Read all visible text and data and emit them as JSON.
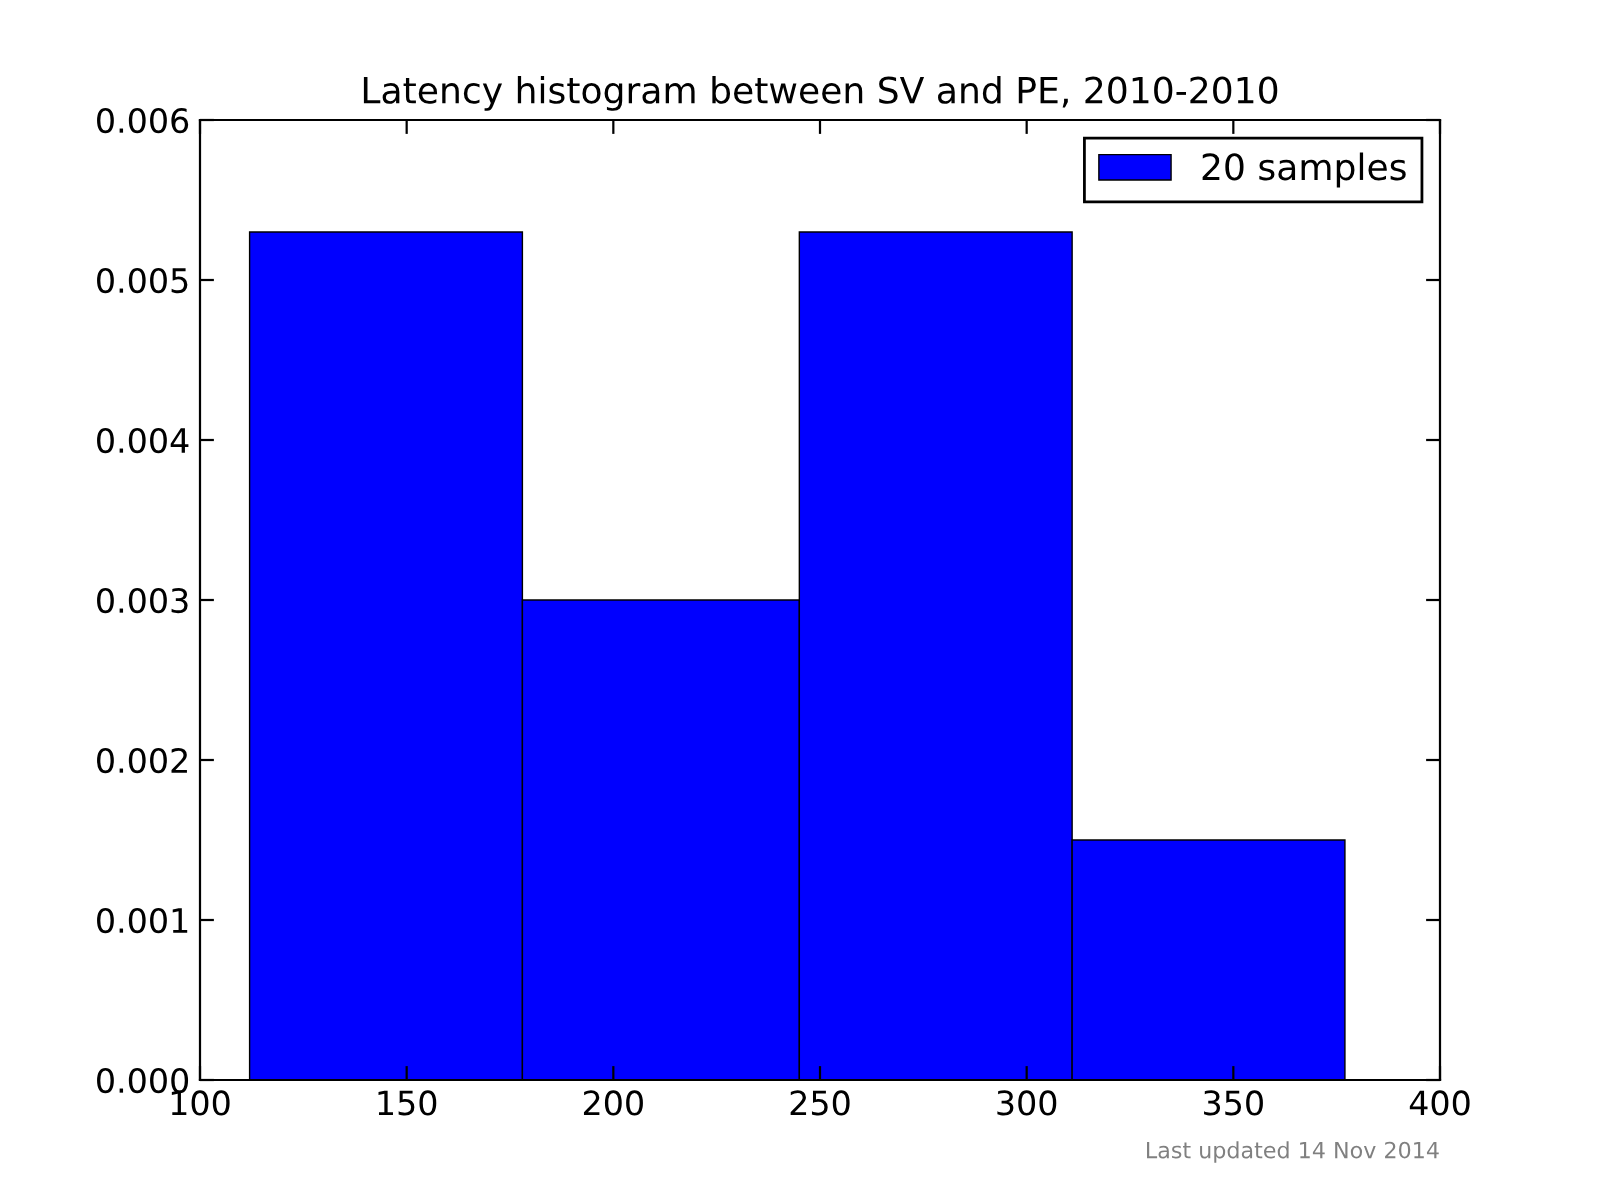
{
  "chart_data": {
    "type": "histogram",
    "title": "Latency histogram between SV and PE, 2010-2010",
    "bins": [
      112,
      178,
      245,
      311,
      377
    ],
    "series": [
      {
        "name": "20 samples",
        "color": "#0000ff",
        "values": [
          0.0053,
          0.003,
          0.0053,
          0.0015
        ]
      }
    ],
    "xlim": [
      100,
      400
    ],
    "xticks": [
      100,
      150,
      200,
      250,
      300,
      350,
      400
    ],
    "ylim": [
      0,
      0.006
    ],
    "yticks": [
      {
        "value": 0,
        "label": "0.000"
      },
      {
        "value": 0.001,
        "label": "0.001"
      },
      {
        "value": 0.002,
        "label": "0.002"
      },
      {
        "value": 0.003,
        "label": "0.003"
      },
      {
        "value": 0.004,
        "label": "0.004"
      },
      {
        "value": 0.005,
        "label": "0.005"
      },
      {
        "value": 0.006,
        "label": "0.006"
      }
    ],
    "grid": false,
    "legend": "top right",
    "annotations": [
      "Last updated 14 Nov 2014"
    ]
  }
}
